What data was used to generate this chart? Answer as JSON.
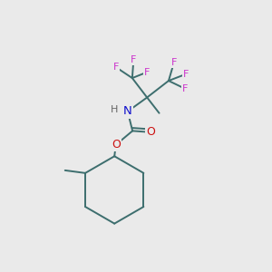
{
  "background_color": "#eaeaea",
  "bond_color": "#3d6e6e",
  "bond_width": 1.4,
  "F_color": "#cc33cc",
  "N_color": "#1111cc",
  "O_color": "#cc1111",
  "H_color": "#666666",
  "font_size": 8.5,
  "fig_width": 3.0,
  "fig_height": 3.0,
  "dpi": 100,
  "xlim": [
    0,
    10
  ],
  "ylim": [
    0,
    10
  ]
}
